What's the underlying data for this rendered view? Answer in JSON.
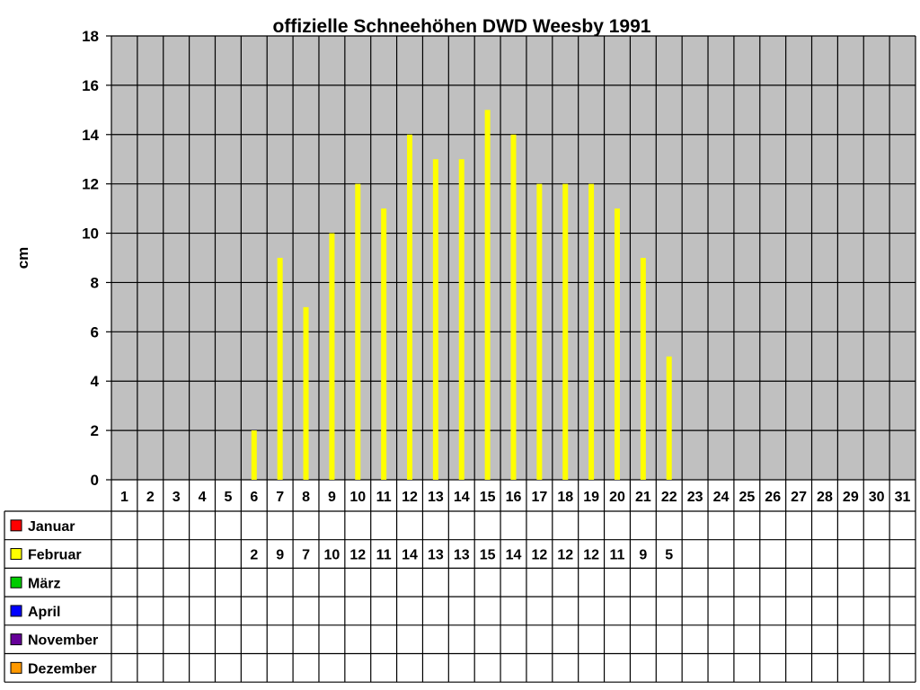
{
  "chart_data": {
    "type": "bar",
    "title": "offizielle Schneehöhen DWD Weesby 1991",
    "ylabel": "cm",
    "xlabel": "",
    "ylim": [
      0,
      18
    ],
    "yticks": [
      0,
      2,
      4,
      6,
      8,
      10,
      12,
      14,
      16,
      18
    ],
    "grid": true,
    "legend": "left, inside data table",
    "categories": [
      "1",
      "2",
      "3",
      "4",
      "5",
      "6",
      "7",
      "8",
      "9",
      "10",
      "11",
      "12",
      "13",
      "14",
      "15",
      "16",
      "17",
      "18",
      "19",
      "20",
      "21",
      "22",
      "23",
      "24",
      "25",
      "26",
      "27",
      "28",
      "29",
      "30",
      "31"
    ],
    "series": [
      {
        "name": "Januar",
        "color": "#ff0000",
        "values": [
          null,
          null,
          null,
          null,
          null,
          null,
          null,
          null,
          null,
          null,
          null,
          null,
          null,
          null,
          null,
          null,
          null,
          null,
          null,
          null,
          null,
          null,
          null,
          null,
          null,
          null,
          null,
          null,
          null,
          null,
          null
        ]
      },
      {
        "name": "Februar",
        "color": "#ffff00",
        "values": [
          null,
          null,
          null,
          null,
          null,
          2,
          9,
          7,
          10,
          12,
          11,
          14,
          13,
          13,
          15,
          14,
          12,
          12,
          12,
          11,
          9,
          5,
          null,
          null,
          null,
          null,
          null,
          null,
          null,
          null,
          null
        ]
      },
      {
        "name": "März",
        "color": "#00cc00",
        "values": [
          null,
          null,
          null,
          null,
          null,
          null,
          null,
          null,
          null,
          null,
          null,
          null,
          null,
          null,
          null,
          null,
          null,
          null,
          null,
          null,
          null,
          null,
          null,
          null,
          null,
          null,
          null,
          null,
          null,
          null,
          null
        ]
      },
      {
        "name": "April",
        "color": "#0000ff",
        "values": [
          null,
          null,
          null,
          null,
          null,
          null,
          null,
          null,
          null,
          null,
          null,
          null,
          null,
          null,
          null,
          null,
          null,
          null,
          null,
          null,
          null,
          null,
          null,
          null,
          null,
          null,
          null,
          null,
          null,
          null,
          null
        ]
      },
      {
        "name": "November",
        "color": "#660099",
        "values": [
          null,
          null,
          null,
          null,
          null,
          null,
          null,
          null,
          null,
          null,
          null,
          null,
          null,
          null,
          null,
          null,
          null,
          null,
          null,
          null,
          null,
          null,
          null,
          null,
          null,
          null,
          null,
          null,
          null,
          null,
          null
        ]
      },
      {
        "name": "Dezember",
        "color": "#ff9900",
        "values": [
          null,
          null,
          null,
          null,
          null,
          null,
          null,
          null,
          null,
          null,
          null,
          null,
          null,
          null,
          null,
          null,
          null,
          null,
          null,
          null,
          null,
          null,
          null,
          null,
          null,
          null,
          null,
          null,
          null,
          null,
          null
        ]
      }
    ],
    "plot_background": "#c0c0c0"
  }
}
